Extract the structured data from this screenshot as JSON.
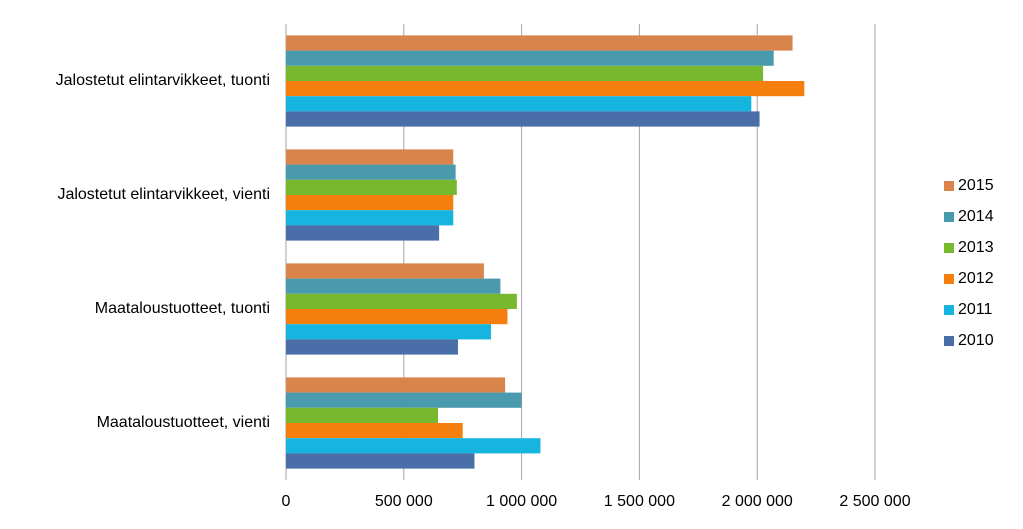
{
  "chart_data": {
    "type": "hbar",
    "categories": [
      "Jalostetut elintarvikkeet, tuonti",
      "Jalostetut elintarvikkeet, vienti",
      "Maataloustuotteet, tuonti",
      "Maataloustuotteet, vienti"
    ],
    "series": [
      {
        "name": "2015",
        "color": "#d9844a",
        "values": [
          2150000,
          710000,
          840000,
          930000
        ]
      },
      {
        "name": "2014",
        "color": "#4a9aae",
        "values": [
          2070000,
          720000,
          910000,
          1000000
        ]
      },
      {
        "name": "2013",
        "color": "#77b82e",
        "values": [
          2025000,
          725000,
          980000,
          645000
        ]
      },
      {
        "name": "2012",
        "color": "#f47f0e",
        "values": [
          2200000,
          710000,
          940000,
          750000
        ]
      },
      {
        "name": "2011",
        "color": "#16b5e0",
        "values": [
          1975000,
          710000,
          870000,
          1080000
        ]
      },
      {
        "name": "2010",
        "color": "#4a6fa8",
        "values": [
          2010000,
          650000,
          730000,
          800000
        ]
      }
    ],
    "xlim": [
      0,
      2500000
    ],
    "xticks": [
      0,
      {
        "value": 500000,
        "label": "500 000"
      },
      {
        "value": 1000000,
        "label": "1 000 000"
      },
      {
        "value": 1500000,
        "label": "1 500 000"
      },
      {
        "value": 2000000,
        "label": "2 000 000"
      },
      {
        "value": 2500000,
        "label": "2 500 000"
      }
    ],
    "grid": true,
    "legend": "right"
  }
}
